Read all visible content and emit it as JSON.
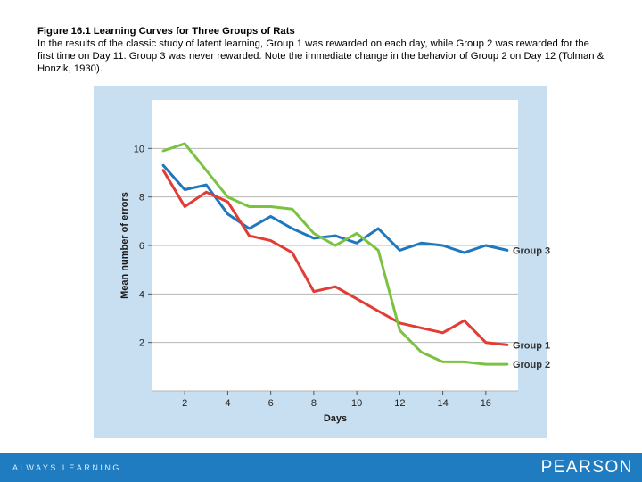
{
  "caption": {
    "title": "Figure 16.1   Learning Curves for Three Groups of Rats",
    "body": "In the results of the classic study of latent learning, Group 1 was rewarded on each day, while Group 2 was rewarded for the first time on Day 11. Group 3 was never rewarded. Note the immediate change in the behavior of Group 2 on Day 12 (Tolman & Honzik, 1930)."
  },
  "footer": {
    "tagline": "ALWAYS LEARNING",
    "brand": "PEARSON"
  },
  "colors": {
    "panel_bg": "#c7dff0",
    "plot_bg": "#ffffff",
    "grid": "#b4b4b4",
    "footer": "#1f7cc0",
    "group1": "#e23c35",
    "group2": "#7cc242",
    "group3": "#1f78be"
  },
  "chart_data": {
    "type": "line",
    "title": "",
    "xlabel": "Days",
    "ylabel": "Mean number of errors",
    "xlim": [
      0.5,
      17.5
    ],
    "ylim": [
      0,
      12
    ],
    "xticks": [
      2,
      4,
      6,
      8,
      10,
      12,
      14,
      16
    ],
    "yticks": [
      2,
      4,
      6,
      8,
      10
    ],
    "grid": "horizontal",
    "series": [
      {
        "name": "Group 3",
        "x": [
          1,
          2,
          3,
          4,
          5,
          6,
          7,
          8,
          9,
          10,
          11,
          12,
          13,
          14,
          15,
          16,
          17
        ],
        "values": [
          9.3,
          8.3,
          8.5,
          7.3,
          6.7,
          7.2,
          6.7,
          6.3,
          6.4,
          6.1,
          6.7,
          5.8,
          6.1,
          6.0,
          5.7,
          6.0,
          5.8
        ]
      },
      {
        "name": "Group 1",
        "x": [
          1,
          2,
          3,
          4,
          5,
          6,
          7,
          8,
          9,
          10,
          11,
          12,
          13,
          14,
          15,
          16,
          17
        ],
        "values": [
          9.1,
          7.6,
          8.2,
          7.8,
          6.4,
          6.2,
          5.7,
          4.1,
          4.3,
          3.8,
          3.3,
          2.8,
          2.6,
          2.4,
          2.9,
          2.0,
          1.9
        ]
      },
      {
        "name": "Group 2",
        "x": [
          1,
          2,
          3,
          4,
          5,
          6,
          7,
          8,
          9,
          10,
          11,
          12,
          13,
          14,
          15,
          16,
          17
        ],
        "values": [
          9.9,
          10.2,
          9.1,
          8.0,
          7.6,
          7.6,
          7.5,
          6.5,
          6.0,
          6.5,
          5.8,
          2.5,
          1.6,
          1.2,
          1.2,
          1.1,
          1.1
        ]
      }
    ]
  }
}
